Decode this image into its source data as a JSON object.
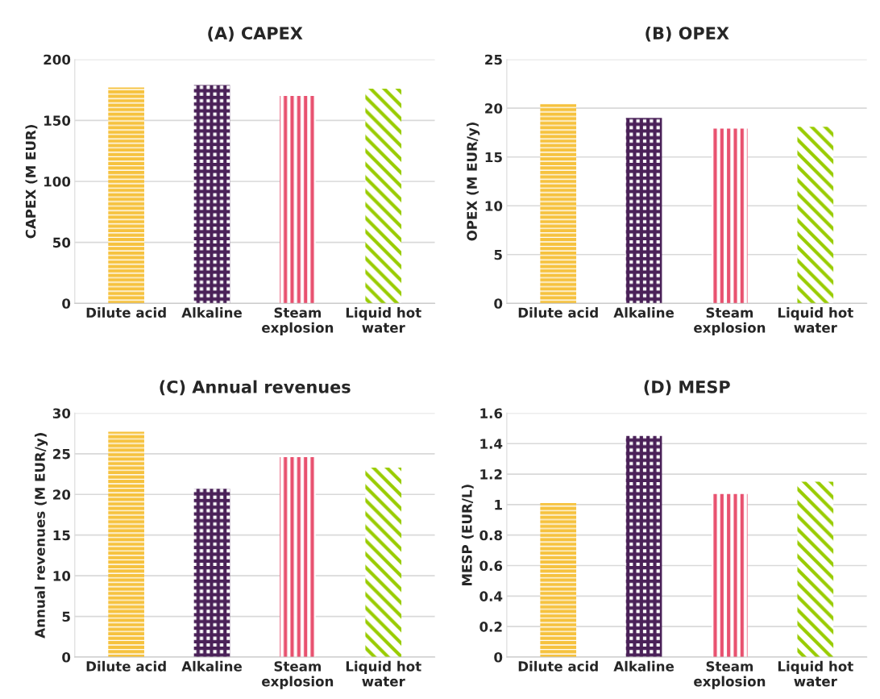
{
  "chart_data": [
    {
      "type": "bar",
      "title": "(A) CAPEX",
      "ylabel": "CAPEX (M EUR)",
      "categories": [
        "Dilute acid",
        "Alkaline",
        "Steam\nexplosion",
        "Liquid hot\nwater"
      ],
      "values": [
        177,
        179,
        170,
        176
      ],
      "colors": [
        "#f6c23e",
        "#4a2158",
        "#e8516f",
        "#99cc00"
      ],
      "ylim": [
        0,
        200
      ],
      "yticks": [
        0,
        50,
        100,
        150,
        200
      ],
      "grid": "y",
      "legend": false
    },
    {
      "type": "bar",
      "title": "(B) OPEX",
      "ylabel": "OPEX (M EUR/y)",
      "categories": [
        "Dilute acid",
        "Alkaline",
        "Steam\nexplosion",
        "Liquid hot\nwater"
      ],
      "values": [
        20.4,
        19.0,
        17.9,
        18.1
      ],
      "colors": [
        "#f6c23e",
        "#4a2158",
        "#e8516f",
        "#99cc00"
      ],
      "ylim": [
        0,
        25
      ],
      "yticks": [
        0,
        5,
        10,
        15,
        20,
        25
      ],
      "grid": "y",
      "legend": false
    },
    {
      "type": "bar",
      "title": "(C) Annual revenues",
      "ylabel": "Annual revenues (M EUR/y)",
      "categories": [
        "Dilute acid",
        "Alkaline",
        "Steam\nexplosion",
        "Liquid hot\nwater"
      ],
      "values": [
        27.7,
        20.7,
        24.6,
        23.3
      ],
      "colors": [
        "#f6c23e",
        "#4a2158",
        "#e8516f",
        "#99cc00"
      ],
      "ylim": [
        0,
        30
      ],
      "yticks": [
        0,
        5,
        10,
        15,
        20,
        25,
        30
      ],
      "grid": "y",
      "legend": false
    },
    {
      "type": "bar",
      "title": "(D) MESP",
      "ylabel": "MESP (EUR/L)",
      "categories": [
        "Dilute acid",
        "Alkaline",
        "Steam\nexplosion",
        "Liquid hot\nwater"
      ],
      "values": [
        1.01,
        1.45,
        1.07,
        1.15
      ],
      "colors": [
        "#f6c23e",
        "#4a2158",
        "#e8516f",
        "#99cc00"
      ],
      "ylim": [
        0,
        1.6
      ],
      "yticks": [
        0,
        {
          "value": 0.2,
          "label": "0.2"
        },
        {
          "value": 0.4,
          "label": "0.4"
        },
        {
          "value": 0.6,
          "label": "0.6"
        },
        {
          "value": 0.8,
          "label": "0.8"
        },
        1,
        {
          "value": 1.2,
          "label": "1.2"
        },
        {
          "value": 1.4,
          "label": "1.4"
        },
        {
          "value": 1.6,
          "label": "1.6"
        }
      ],
      "grid": "y",
      "legend": false
    }
  ]
}
